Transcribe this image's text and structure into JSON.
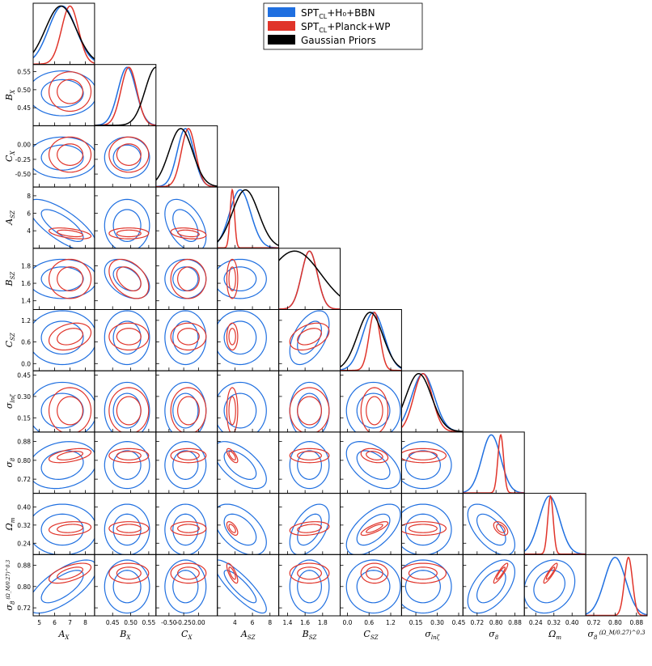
{
  "chart_data": {
    "type": "corner",
    "parameters": [
      {
        "name": "A_X",
        "label": "A",
        "sub": "X",
        "range": [
          4.6,
          8.6
        ],
        "ticks": [
          "5",
          "6",
          "7",
          "8"
        ],
        "tickvals": [
          5,
          6,
          7,
          8
        ]
      },
      {
        "name": "B_X",
        "label": "B",
        "sub": "X",
        "range": [
          0.4,
          0.57
        ],
        "ticks": [
          "0.45",
          "0.50",
          "0.55"
        ],
        "tickvals": [
          0.45,
          0.5,
          0.55
        ]
      },
      {
        "name": "C_X",
        "label": "C",
        "sub": "X",
        "range": [
          -0.72,
          0.32
        ],
        "ticks": [
          "-0.50",
          "-0.25",
          "0.00"
        ],
        "tickvals": [
          -0.5,
          -0.25,
          0.0
        ],
        "yticks": [
          "0.00",
          "-0.25",
          "-0.50"
        ]
      },
      {
        "name": "A_SZ",
        "label": "A",
        "sub": "SZ",
        "range": [
          2.0,
          9.0
        ],
        "ticks": [
          "4",
          "6",
          "8"
        ],
        "tickvals": [
          4,
          6,
          8
        ]
      },
      {
        "name": "B_SZ",
        "label": "B",
        "sub": "SZ",
        "range": [
          1.3,
          2.0
        ],
        "ticks": [
          "1.4",
          "1.6",
          "1.8"
        ],
        "tickvals": [
          1.4,
          1.6,
          1.8
        ]
      },
      {
        "name": "C_SZ",
        "label": "C",
        "sub": "SZ",
        "range": [
          -0.2,
          1.5
        ],
        "ticks": [
          "0.0",
          "0.6",
          "1.2"
        ],
        "tickvals": [
          0.0,
          0.6,
          1.2
        ],
        "yticks": [
          "1.2",
          "0.6",
          "0.0"
        ],
        "xticks": [
          "0.0",
          "0.6",
          "1.2"
        ]
      },
      {
        "name": "sigma_lnzeta",
        "label": "σ",
        "sub": "lnζ",
        "range": [
          0.05,
          0.48
        ],
        "ticks": [
          "0.15",
          "0.30",
          "0.45"
        ],
        "tickvals": [
          0.15,
          0.3,
          0.45
        ]
      },
      {
        "name": "sigma_8",
        "label": "σ",
        "sub": "8",
        "range": [
          0.66,
          0.92
        ],
        "ticks": [
          "0.72",
          "0.80",
          "0.88"
        ],
        "tickvals": [
          0.72,
          0.8,
          0.88
        ]
      },
      {
        "name": "Omega_m",
        "label": "Ω",
        "sub": "m",
        "range": [
          0.19,
          0.46
        ],
        "ticks": [
          "0.24",
          "0.32",
          "0.40"
        ],
        "tickvals": [
          0.24,
          0.32,
          0.4
        ]
      },
      {
        "name": "S8",
        "label": "σ",
        "sub": "8",
        "suffix": "(Ω_M/0.27)^0.3",
        "range": [
          0.69,
          0.92
        ],
        "ticks": [
          "0.72",
          "0.80",
          "0.88"
        ],
        "tickvals": [
          0.72,
          0.8,
          0.88
        ]
      }
    ],
    "y_tick_labels": [
      [],
      [
        "0.55",
        "0.50",
        "0.45"
      ],
      [
        "0.00",
        "-0.25",
        "-0.50"
      ],
      [
        "8",
        "6",
        "4"
      ],
      [
        "1.8",
        "1.6",
        "1.4"
      ],
      [
        "1.2",
        "0.6",
        "0.0"
      ],
      [
        "0.45",
        "0.30",
        "0.15"
      ],
      [
        "0.88",
        "0.80",
        "0.72"
      ],
      [
        "0.40",
        "0.32",
        "0.24"
      ],
      [
        "0.88",
        "0.80",
        "0.72"
      ]
    ],
    "y_tick_values": [
      [],
      [
        0.55,
        0.5,
        0.45
      ],
      [
        0.0,
        -0.25,
        -0.5
      ],
      [
        8,
        6,
        4
      ],
      [
        1.8,
        1.6,
        1.4
      ],
      [
        1.2,
        0.6,
        0.0
      ],
      [
        0.45,
        0.3,
        0.15
      ],
      [
        0.88,
        0.8,
        0.72
      ],
      [
        0.4,
        0.32,
        0.24
      ],
      [
        0.88,
        0.8,
        0.72
      ]
    ],
    "series": [
      {
        "name": "SPT_CL+H_0+BBN",
        "legend_main": "SPT",
        "legend_sub": "CL",
        "legend_rest": "+H₀+BBN",
        "color": "#1f6fe0",
        "mean": [
          6.5,
          0.49,
          -0.22,
          4.6,
          1.65,
          0.72,
          0.2,
          0.78,
          0.3,
          0.8
        ],
        "sigma": [
          0.9,
          0.025,
          0.14,
          1.2,
          0.09,
          0.3,
          0.08,
          0.04,
          0.045,
          0.04
        ]
      },
      {
        "name": "SPT_CL+Planck+WP",
        "legend_main": "SPT",
        "legend_sub": "CL",
        "legend_rest": "+Planck+WP",
        "color": "#e0342a",
        "mean": [
          7.0,
          0.495,
          -0.17,
          3.7,
          1.65,
          0.75,
          0.2,
          0.82,
          0.305,
          0.85
        ],
        "sigma": [
          0.55,
          0.022,
          0.12,
          0.25,
          0.09,
          0.15,
          0.065,
          0.012,
          0.012,
          0.015
        ]
      },
      {
        "name": "Gaussian Priors",
        "legend_main": "Gaussian Priors",
        "legend_sub": "",
        "legend_rest": "",
        "color": "#000000",
        "mean": [
          6.4,
          0.57,
          -0.3,
          5.2,
          1.48,
          0.63,
          0.17
        ],
        "sigma": [
          1.0,
          0.03,
          0.2,
          1.5,
          0.3,
          0.35,
          0.09
        ]
      }
    ],
    "legend_placement": "top-right"
  }
}
